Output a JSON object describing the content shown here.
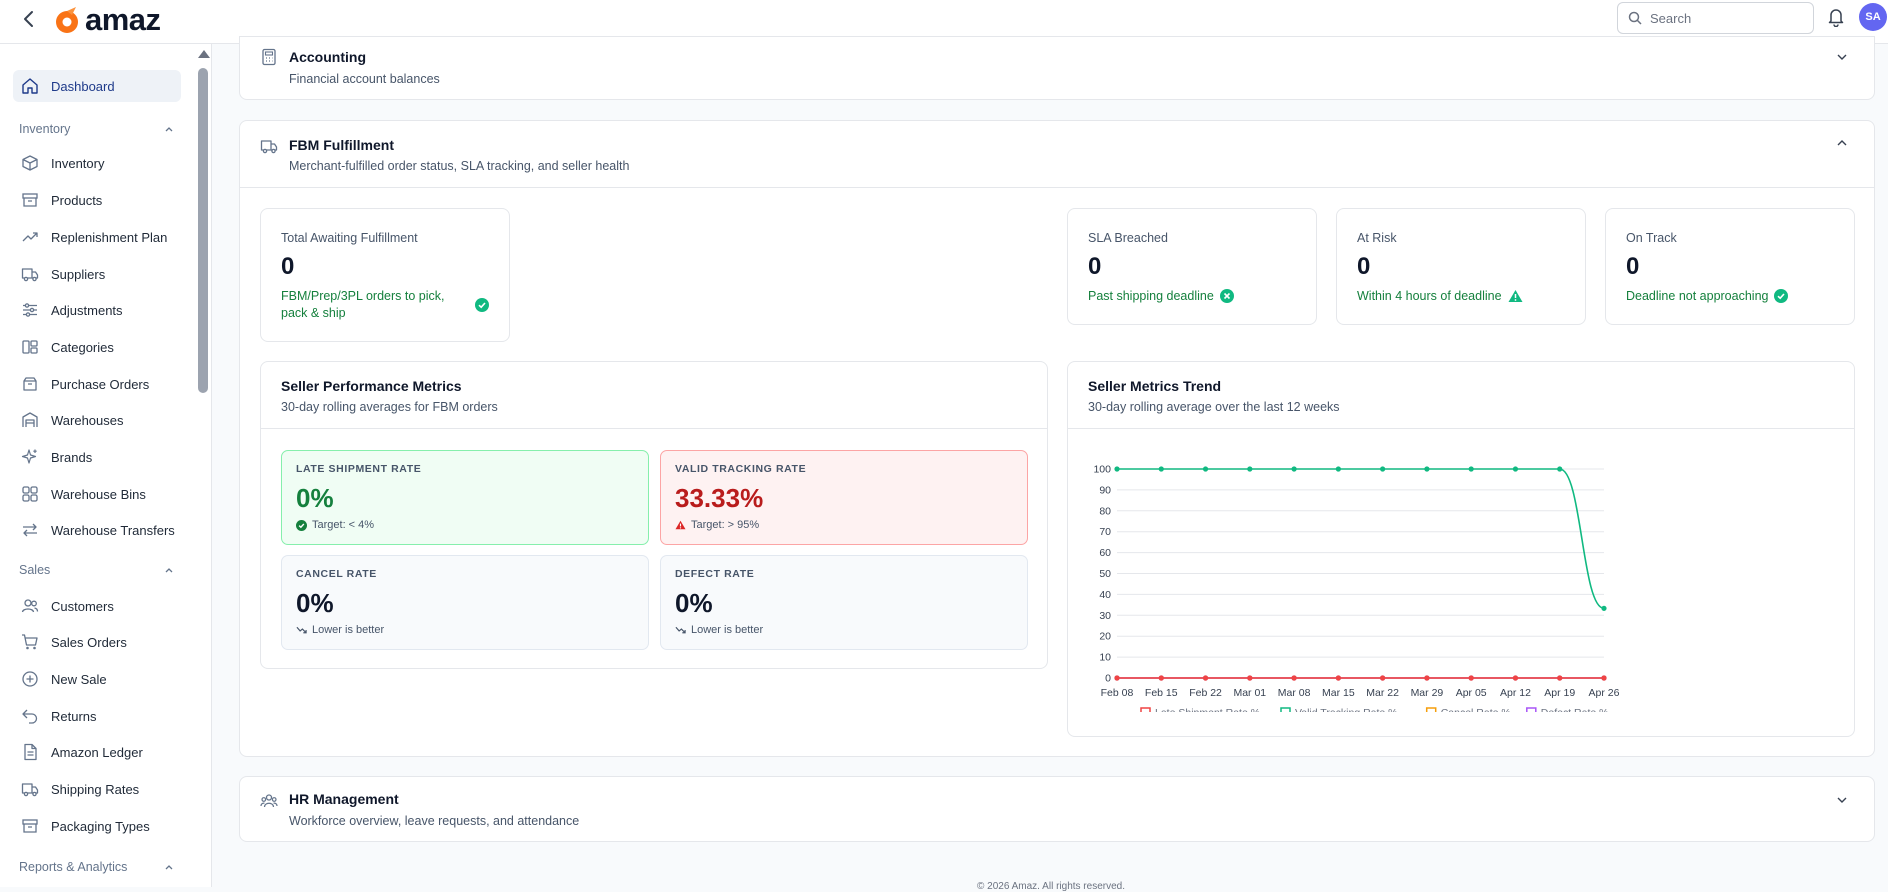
{
  "brand": {
    "name": "amaz",
    "accent": "#f97316"
  },
  "header": {
    "search_placeholder": "Search",
    "avatar_initials": "SA",
    "icons": [
      "back-arrow-icon",
      "search-icon",
      "bell-icon"
    ]
  },
  "sidebar": {
    "dashboard": "Dashboard",
    "groups": {
      "inventory": "Inventory",
      "sales": "Sales",
      "reports": "Reports & Analytics"
    },
    "inventory_items": [
      "Inventory",
      "Products",
      "Replenishment Plan",
      "Suppliers",
      "Adjustments",
      "Categories",
      "Purchase Orders",
      "Warehouses",
      "Brands",
      "Warehouse Bins",
      "Warehouse Transfers"
    ],
    "sales_items": [
      "Customers",
      "Sales Orders",
      "New Sale",
      "Returns",
      "Amazon Ledger",
      "Shipping Rates",
      "Packaging Types"
    ]
  },
  "sections": {
    "accounting": {
      "title": "Accounting",
      "subtitle": "Financial account balances"
    },
    "fbm": {
      "title": "FBM Fulfillment",
      "subtitle": "Merchant-fulfilled order status, SLA tracking, and seller health"
    },
    "hr": {
      "title": "HR Management",
      "subtitle": "Workforce overview, leave requests, and attendance"
    }
  },
  "fbm_stats": {
    "awaiting": {
      "label": "Total Awaiting Fulfillment",
      "value": "0",
      "note_line1": "FBM/Prep/3PL orders to pick,",
      "note_line2": "pack & ship"
    },
    "sla_breached": {
      "label": "SLA Breached",
      "value": "0",
      "note": "Past shipping deadline"
    },
    "at_risk": {
      "label": "At Risk",
      "value": "0",
      "note": "Within 4 hours of deadline"
    },
    "on_track": {
      "label": "On Track",
      "value": "0",
      "note": "Deadline not approaching"
    }
  },
  "seller_performance": {
    "title": "Seller Performance Metrics",
    "subtitle": "30-day rolling averages for FBM orders",
    "metrics": {
      "late_shipment": {
        "label": "LATE SHIPMENT RATE",
        "value": "0%",
        "note": "Target: < 4%"
      },
      "valid_tracking": {
        "label": "VALID TRACKING RATE",
        "value": "33.33%",
        "note": "Target: > 95%"
      },
      "cancel": {
        "label": "CANCEL RATE",
        "value": "0%",
        "note": "Lower is better"
      },
      "defect": {
        "label": "DEFECT RATE",
        "value": "0%",
        "note": "Lower is better"
      }
    }
  },
  "trend": {
    "title": "Seller Metrics Trend",
    "subtitle": "30-day rolling average over the last 12 weeks"
  },
  "chart_data": {
    "type": "line",
    "title": "",
    "xlabel": "",
    "ylabel": "",
    "x": [
      "Feb 08",
      "Feb 15",
      "Feb 22",
      "Mar 01",
      "Mar 08",
      "Mar 15",
      "Mar 22",
      "Mar 29",
      "Apr 05",
      "Apr 12",
      "Apr 19",
      "Apr 26"
    ],
    "yticks": [
      "0",
      "10",
      "20",
      "30",
      "40",
      "50",
      "60",
      "70",
      "80",
      "90",
      "100"
    ],
    "ylim": [
      0,
      100
    ],
    "grid": true,
    "legend": "bottom",
    "series": [
      {
        "name": "Late Shipment Rate %",
        "color": "#ef4444",
        "values": [
          0,
          0,
          0,
          0,
          0,
          0,
          0,
          0,
          0,
          0,
          0,
          0
        ]
      },
      {
        "name": "Valid Tracking Rate %",
        "color": "#10b981",
        "values": [
          100,
          100,
          100,
          100,
          100,
          100,
          100,
          100,
          100,
          100,
          100,
          33.33
        ]
      },
      {
        "name": "Cancel Rate %",
        "color": "#f59e0b",
        "values": [
          0,
          0,
          0,
          0,
          0,
          0,
          0,
          0,
          0,
          0,
          0,
          0
        ]
      },
      {
        "name": "Defect Rate %",
        "color": "#a855f7",
        "values": [
          0,
          0,
          0,
          0,
          0,
          0,
          0,
          0,
          0,
          0,
          0,
          0
        ]
      }
    ]
  },
  "footer": "© 2026 Amaz. All rights reserved."
}
